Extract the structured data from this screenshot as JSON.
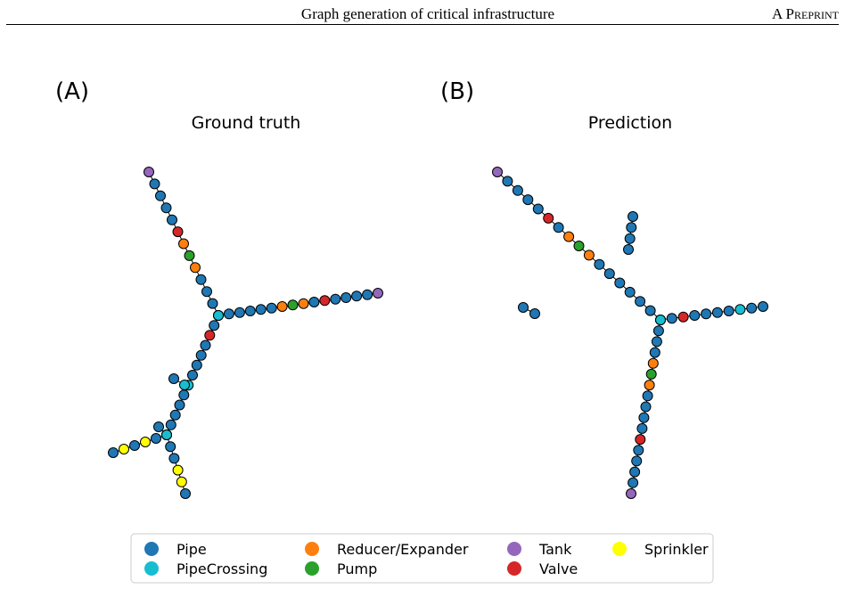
{
  "header": {
    "title": "Graph generation of critical infrastructure",
    "tag": "A Preprint"
  },
  "figure": {
    "panels": [
      {
        "letter": "(A)",
        "title": "Ground truth"
      },
      {
        "letter": "(B)",
        "title": "Prediction"
      }
    ],
    "legend": [
      {
        "label": "Pipe",
        "color": "#1f77b4"
      },
      {
        "label": "PipeCrossing",
        "color": "#17becf"
      },
      {
        "label": "Reducer/Expander",
        "color": "#ff7f0e"
      },
      {
        "label": "Pump",
        "color": "#2ca02c"
      },
      {
        "label": "Tank",
        "color": "#9467bd"
      },
      {
        "label": "Valve",
        "color": "#d62728"
      },
      {
        "label": "Sprinkler",
        "color": "#ffff00"
      }
    ],
    "node_style": {
      "edge_color": "#000000"
    }
  },
  "chart_data": [
    {
      "type": "scatter",
      "title": "Ground truth",
      "node_types": [
        "Pipe",
        "PipeCrossing",
        "Reducer/Expander",
        "Pump",
        "Tank",
        "Valve",
        "Sprinkler"
      ],
      "branches": [
        {
          "types": [
            "Tank",
            "Pipe",
            "Pipe",
            "Pipe",
            "Pipe",
            "Valve",
            "Reducer/Expander",
            "Pump",
            "Reducer/Expander",
            "Pipe",
            "Pipe",
            "Pipe",
            "PipeCrossing"
          ]
        },
        {
          "types": [
            "PipeCrossing",
            "Pipe",
            "Pipe",
            "Pipe",
            "Pipe",
            "Pipe",
            "Reducer/Expander",
            "Pump",
            "Reducer/Expander",
            "Pipe",
            "Valve",
            "Pipe",
            "Pipe",
            "Pipe",
            "Pipe",
            "Tank"
          ]
        },
        {
          "types": [
            "PipeCrossing",
            "Pipe",
            "Valve",
            "Pipe",
            "Pipe",
            "Pipe",
            "Pipe",
            "PipeCrossing",
            "Pipe",
            "Pipe",
            "Pipe",
            "Pipe",
            "PipeCrossing"
          ]
        },
        {
          "types": [
            "PipeCrossing",
            "Pipe",
            "Sprinkler",
            "Pipe",
            "Sprinkler",
            "Pipe"
          ]
        },
        {
          "types": [
            "PipeCrossing",
            "Pipe",
            "Pipe",
            "Sprinkler",
            "Sprinkler",
            "Pipe"
          ]
        },
        {
          "types": [
            "PipeCrossing",
            "Pipe"
          ]
        },
        {
          "types": [
            "PipeCrossing",
            "Pipe"
          ]
        }
      ]
    },
    {
      "type": "scatter",
      "title": "Prediction",
      "node_types": [
        "Pipe",
        "PipeCrossing",
        "Reducer/Expander",
        "Pump",
        "Tank",
        "Valve",
        "Sprinkler"
      ],
      "branches": [
        {
          "types": [
            "Tank",
            "Pipe",
            "Pipe",
            "Pipe",
            "Pipe",
            "Valve",
            "Pipe",
            "Reducer/Expander",
            "Pump",
            "Reducer/Expander",
            "Pipe",
            "Pipe",
            "Pipe",
            "Pipe",
            "Pipe",
            "Pipe",
            "PipeCrossing"
          ]
        },
        {
          "types": [
            "PipeCrossing",
            "Pipe",
            "Valve",
            "Pipe",
            "Pipe",
            "Pipe",
            "Pipe",
            "PipeCrossing",
            "Pipe",
            "Pipe"
          ]
        },
        {
          "types": [
            "PipeCrossing",
            "Pipe",
            "Pipe",
            "Pipe",
            "Reducer/Expander",
            "Pump",
            "Reducer/Expander",
            "Pipe",
            "Pipe",
            "Pipe",
            "Pipe",
            "Valve",
            "Pipe",
            "Pipe",
            "Pipe",
            "Pipe",
            "Tank"
          ]
        },
        {
          "types": [
            "Pipe",
            "Pipe",
            "Pipe",
            "Pipe"
          ]
        },
        {
          "types": [
            "Pipe",
            "Pipe"
          ]
        }
      ]
    }
  ]
}
